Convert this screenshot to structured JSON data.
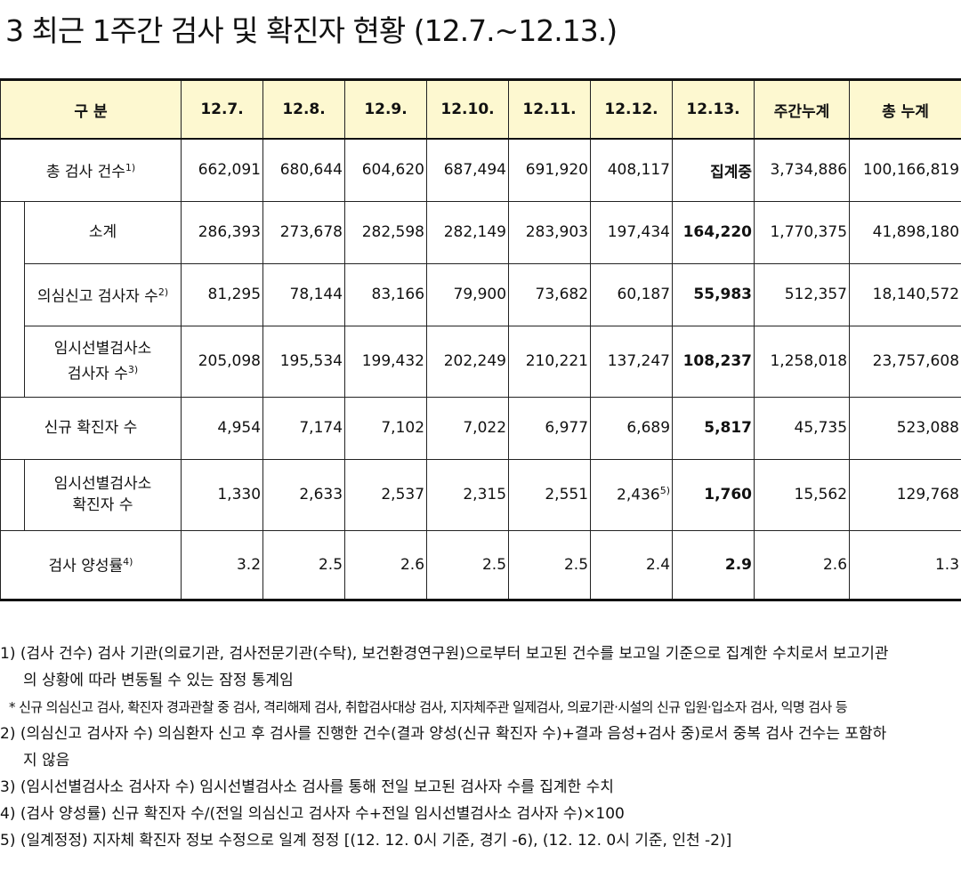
{
  "title": "3  최근 1주간 검사 및 확진자 현황 (12.7.~12.13.)",
  "table": {
    "headers": [
      "구 분",
      "12.7.",
      "12.8.",
      "12.9.",
      "12.10.",
      "12.11.",
      "12.12.",
      "12.13.",
      "주간누계",
      "총 누계"
    ],
    "rows": {
      "total_tests": {
        "label": "총 검사 건수",
        "note": "1)",
        "cells": [
          "662,091",
          "680,644",
          "604,620",
          "687,494",
          "691,920",
          "408,117",
          "집계중",
          "3,734,886",
          "100,166,819"
        ]
      },
      "subtotal": {
        "label": "소계",
        "cells": [
          "286,393",
          "273,678",
          "282,598",
          "282,149",
          "283,903",
          "197,434",
          "164,220",
          "1,770,375",
          "41,898,180"
        ]
      },
      "suspected": {
        "label": "의심신고 검사자 수",
        "note": "2)",
        "cells": [
          "81,295",
          "78,144",
          "83,166",
          "79,900",
          "73,682",
          "60,187",
          "55,983",
          "512,357",
          "18,140,572"
        ]
      },
      "temp_site": {
        "label_line1": "임시선별검사소",
        "label_line2": "검사자 수",
        "note": "3)",
        "cells": [
          "205,098",
          "195,534",
          "199,432",
          "202,249",
          "210,221",
          "137,247",
          "108,237",
          "1,258,018",
          "23,757,608"
        ]
      },
      "new_confirmed": {
        "label": "신규 확진자 수",
        "cells": [
          "4,954",
          "7,174",
          "7,102",
          "7,022",
          "6,977",
          "6,689",
          "5,817",
          "45,735",
          "523,088"
        ]
      },
      "temp_confirmed": {
        "label_line1": "임시선별검사소",
        "label_line2": "확진자 수",
        "cells": [
          "1,330",
          "2,633",
          "2,537",
          "2,315",
          "2,551",
          "2,436",
          "1,760",
          "15,562",
          "129,768"
        ],
        "cell_note": "5)"
      },
      "positivity": {
        "label": "검사 양성률",
        "note": "4)",
        "cells": [
          "3.2",
          "2.5",
          "2.6",
          "2.5",
          "2.5",
          "2.4",
          "2.9",
          "2.6",
          "1.3"
        ]
      }
    }
  },
  "notes": {
    "n1_a": "1) (검사 건수) 검사 기관(의료기관, 검사전문기관(수탁), 보건환경연구원)으로부터 보고된 건수를 보고일 기준으로 집계한 수치로서 보고기관",
    "n1_b": "의 상황에 따라 변동될 수 있는 잠정 통계임",
    "n1_star": "* 신규 의심신고 검사, 확진자 경과관찰 중 검사, 격리해제 검사, 취합검사대상 검사, 지자체주관 일제검사, 의료기관·시설의 신규 입원·입소자 검사, 익명 검사 등",
    "n2_a": "2) (의심신고 검사자 수) 의심환자 신고 후 검사를 진행한 건수(결과 양성(신규 확진자 수)+결과 음성+검사 중)로서 중복 검사 건수는 포함하",
    "n2_b": "지 않음",
    "n3": "3) (임시선별검사소 검사자 수) 임시선별검사소 검사를 통해 전일 보고된 검사자 수를 집계한 수치",
    "n4": "4) (검사 양성률) 신규 확진자 수/(전일 의심신고 검사자 수+전일 임시선별검사소 검사자 수)×100",
    "n5": "5) (일계정정) 지자체 확진자 정보 수정으로 일계 정정 [(12. 12. 0시 기준, 경기 -6), (12. 12. 0시 기준, 인천 -2)]"
  }
}
